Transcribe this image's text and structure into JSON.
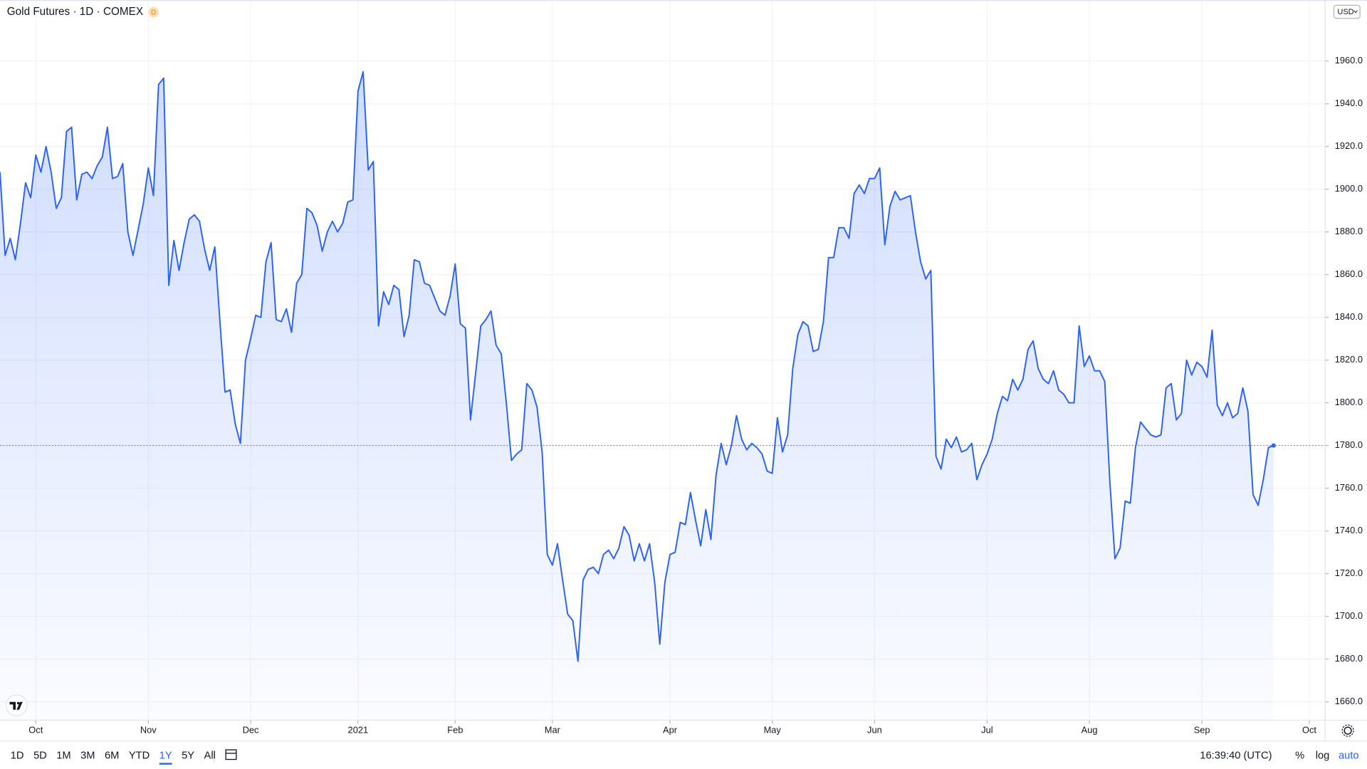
{
  "header": {
    "title": "Gold Futures · 1D · COMEX",
    "badge": "D",
    "currency": "USD"
  },
  "chart_data": {
    "type": "area",
    "color": "#2962ff",
    "values": [
      1908,
      1869,
      1877,
      1867,
      1884,
      1903,
      1896,
      1916,
      1908,
      1920,
      1908,
      1891,
      1896,
      1927,
      1929,
      1895,
      1907,
      1908,
      1905,
      1911,
      1915,
      1929,
      1905,
      1906,
      1912,
      1880,
      1869,
      1881,
      1893,
      1910,
      1897,
      1949,
      1952,
      1855,
      1876,
      1862,
      1875,
      1886,
      1888,
      1885,
      1872,
      1862,
      1873,
      1838,
      1805,
      1806,
      1790,
      1781,
      1820,
      1830,
      1841,
      1840,
      1866,
      1875,
      1839,
      1838,
      1844,
      1833,
      1856,
      1860,
      1891,
      1889,
      1883,
      1871,
      1880,
      1885,
      1880,
      1884,
      1894,
      1895,
      1946,
      1955,
      1909,
      1913,
      1836,
      1852,
      1846,
      1855,
      1853,
      1831,
      1841,
      1867,
      1866,
      1856,
      1855,
      1849,
      1843,
      1841,
      1850,
      1865,
      1837,
      1835,
      1792,
      1814,
      1836,
      1839,
      1843,
      1827,
      1823,
      1800,
      1773,
      1776,
      1778,
      1809,
      1806,
      1798,
      1777,
      1729,
      1724,
      1734,
      1717,
      1701,
      1698,
      1679,
      1717,
      1722,
      1723,
      1720,
      1729,
      1731,
      1727,
      1732,
      1742,
      1738,
      1726,
      1734,
      1726,
      1734,
      1716,
      1687,
      1716,
      1729,
      1730,
      1744,
      1743,
      1758,
      1745,
      1733,
      1750,
      1736,
      1766,
      1781,
      1771,
      1780,
      1794,
      1783,
      1778,
      1781,
      1779,
      1776,
      1768,
      1767,
      1793,
      1777,
      1785,
      1816,
      1832,
      1838,
      1836,
      1824,
      1825,
      1838,
      1868,
      1868,
      1882,
      1882,
      1877,
      1898,
      1902,
      1898,
      1905,
      1905,
      1910,
      1874,
      1892,
      1899,
      1895,
      1896,
      1897,
      1880,
      1866,
      1858,
      1862,
      1775,
      1769,
      1783,
      1779,
      1784,
      1777,
      1778,
      1781,
      1764,
      1771,
      1776,
      1783,
      1795,
      1803,
      1801,
      1811,
      1806,
      1811,
      1825,
      1829,
      1816,
      1811,
      1809,
      1815,
      1806,
      1804,
      1800,
      1800,
      1836,
      1817,
      1822,
      1815,
      1815,
      1810,
      1763,
      1727,
      1732,
      1754,
      1753,
      1779,
      1791,
      1788,
      1785,
      1784,
      1785,
      1807,
      1809,
      1792,
      1795,
      1820,
      1813,
      1819,
      1817,
      1812,
      1834,
      1799,
      1794,
      1800,
      1793,
      1795,
      1807,
      1796,
      1757,
      1752,
      1764,
      1779,
      1780
    ],
    "xlim": [
      0,
      256.2
    ],
    "xticks": [
      {
        "value": 7,
        "label": "Oct"
      },
      {
        "value": 29,
        "label": "Nov"
      },
      {
        "value": 49,
        "label": "Dec"
      },
      {
        "value": 70,
        "label": "2021"
      },
      {
        "value": 89,
        "label": "Feb"
      },
      {
        "value": 108,
        "label": "Mar"
      },
      {
        "value": 131,
        "label": "Apr"
      },
      {
        "value": 151,
        "label": "May"
      },
      {
        "value": 171,
        "label": "Jun"
      },
      {
        "value": 193,
        "label": "Jul"
      },
      {
        "value": 213,
        "label": "Aug"
      },
      {
        "value": 235,
        "label": "Sep"
      },
      {
        "value": 256,
        "label": "Oct"
      }
    ],
    "ylim": [
      1651.4,
      1988.6
    ],
    "yticks": [
      {
        "value": 1660,
        "label": "1660.0"
      },
      {
        "value": 1680,
        "label": "1680.0"
      },
      {
        "value": 1700,
        "label": "1700.0"
      },
      {
        "value": 1720,
        "label": "1720.0"
      },
      {
        "value": 1740,
        "label": "1740.0"
      },
      {
        "value": 1760,
        "label": "1760.0"
      },
      {
        "value": 1780,
        "label": "1780.0"
      },
      {
        "value": 1800,
        "label": "1800.0"
      },
      {
        "value": 1820,
        "label": "1820.0"
      },
      {
        "value": 1840,
        "label": "1840.0"
      },
      {
        "value": 1860,
        "label": "1860.0"
      },
      {
        "value": 1880,
        "label": "1880.0"
      },
      {
        "value": 1900,
        "label": "1900.0"
      },
      {
        "value": 1920,
        "label": "1920.0"
      },
      {
        "value": 1940,
        "label": "1940.0"
      },
      {
        "value": 1960,
        "label": "1960.0"
      }
    ],
    "grid": true
  },
  "toolbar": {
    "ranges": [
      "1D",
      "5D",
      "1M",
      "3M",
      "6M",
      "YTD",
      "1Y",
      "5Y",
      "All"
    ],
    "selected": 6,
    "time": "16:39:40 (UTC)",
    "options": [
      "%",
      "log",
      "auto"
    ]
  }
}
